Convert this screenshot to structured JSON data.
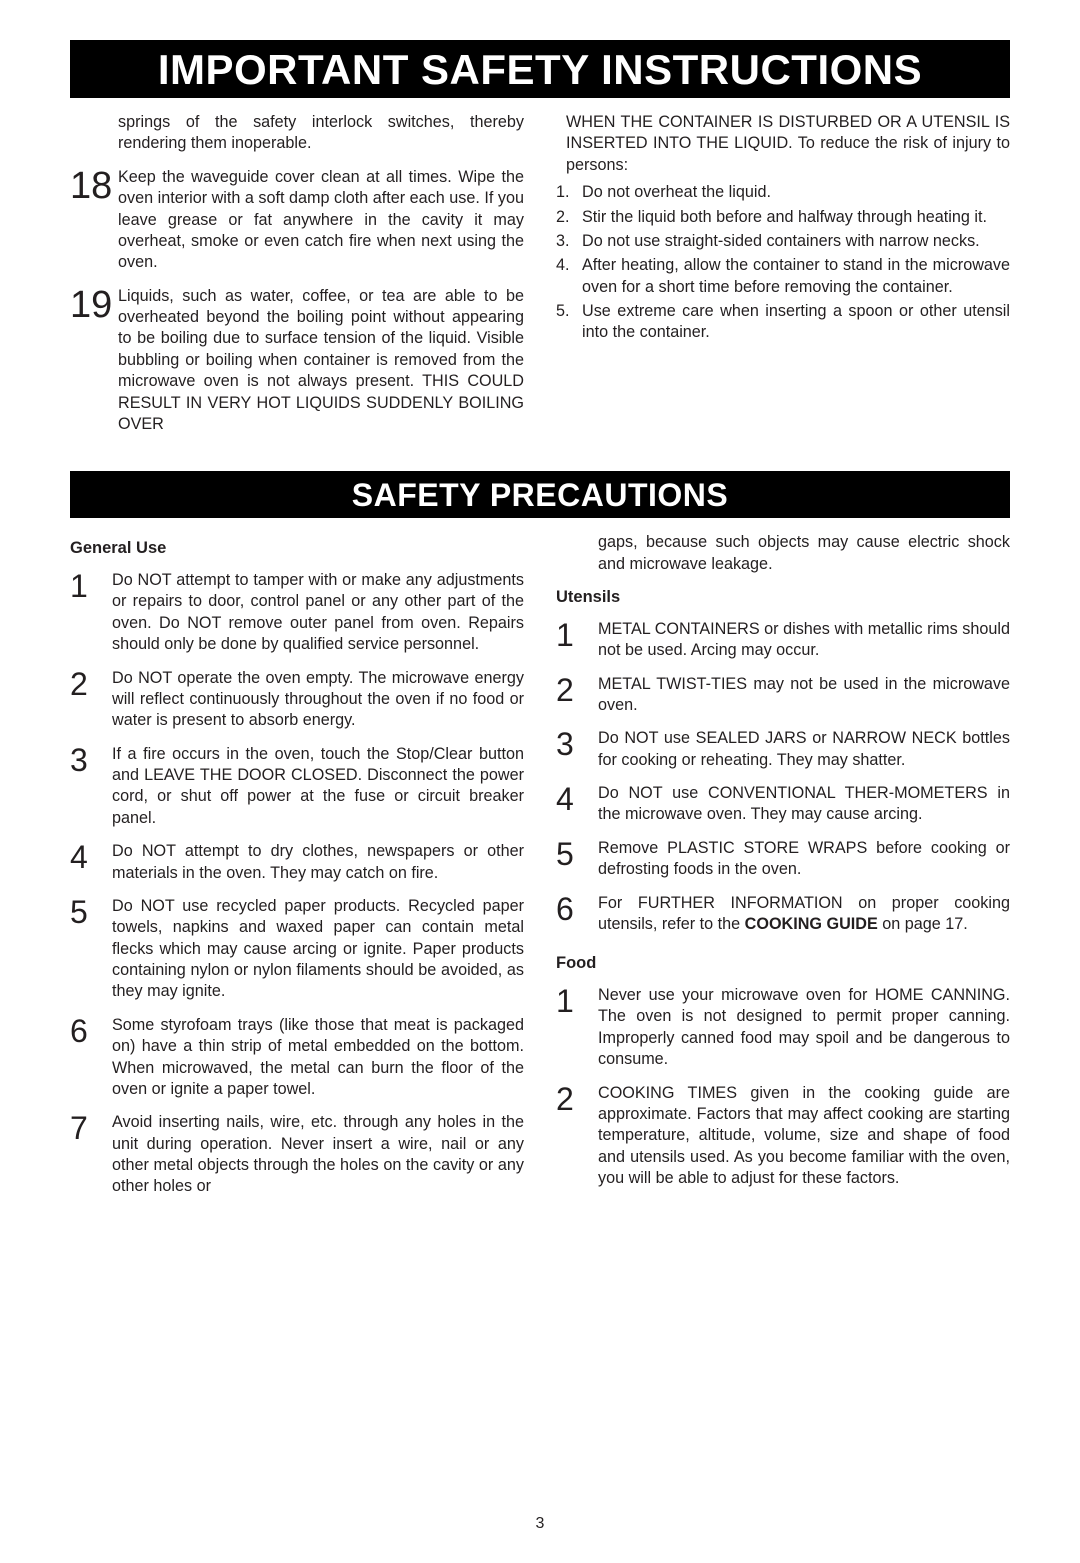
{
  "banners": {
    "main": "IMPORTANT SAFETY INSTRUCTIONS",
    "sub": "SAFETY PRECAUTIONS"
  },
  "top": {
    "left": {
      "cont17": "springs of the safety interlock switches, thereby rendering them inoperable.",
      "n18": "18",
      "t18": "Keep the waveguide cover clean at all times. Wipe the oven interior with a soft damp cloth after each use. If you leave grease or fat anywhere in the cavity it may overheat, smoke or even catch fire when next using the  oven.",
      "n19": "19",
      "t19": "Liquids, such as water, coffee, or tea are able to be overheated beyond the boiling point without appearing to be boiling due to surface tension of the liquid. Visible bubbling or boiling when container is removed from the microwave oven is not always present. THIS COULD RESULT IN VERY HOT LIQUIDS SUDDENLY BOILING OVER"
    },
    "right": {
      "cont19": "WHEN THE  CONTAINER  IS  DISTURBED OR  A UTENSIL  IS INSERTED  INTO  THE LIQUID. To   reduce  the  risk  of  injury  to persons:",
      "list": [
        {
          "n": "1.",
          "t": "Do not overheat the liquid."
        },
        {
          "n": "2.",
          "t": "Stir the liquid both before and halfway through heating it."
        },
        {
          "n": "3.",
          "t": "Do not use straight-sided containers with narrow necks."
        },
        {
          "n": "4.",
          "t": "After heating, allow the container to stand in the microwave oven for a short time before removing the container."
        },
        {
          "n": "5.",
          "t": "Use extreme care when inserting a spoon or other utensil into the container."
        }
      ]
    }
  },
  "precautions": {
    "left": {
      "head1": "General Use",
      "items": [
        {
          "n": "1",
          "t": "Do NOT attempt to tamper with or make any adjustments or repairs to door, control panel or any other part of the oven. Do NOT remove outer panel from oven. Repairs should only be done by qualified service personnel."
        },
        {
          "n": "2",
          "t": " Do NOT operate the oven empty. The microwave energy will reflect continuously throughout the oven if no food or water is present to absorb energy."
        },
        {
          "n": "3",
          "t": "If a fire occurs in the oven, touch the Stop/Clear button and LEAVE THE DOOR CLOSED. Disconnect the power cord, or shut off power at the fuse or circuit breaker panel."
        },
        {
          "n": "4",
          "t": "Do NOT attempt to dry clothes, newspapers or other materials in the oven. They may catch on fire."
        },
        {
          "n": "5",
          "t": "Do NOT use recycled paper products. Recycled paper towels, napkins and waxed paper can contain metal flecks which may cause arcing or ignite. Paper products containing nylon or nylon filaments should be avoided, as they may ignite."
        },
        {
          "n": "6",
          "t": "Some styrofoam trays (like those that meat is packaged on) have a thin strip of metal embedded on the bottom. When microwaved, the metal can burn the floor of the oven or ignite a paper towel."
        },
        {
          "n": "7",
          "t": "Avoid inserting nails, wire, etc. through any holes in the unit during operation. Never insert a wire, nail or any other metal objects through the holes on the cavity or any other holes or"
        }
      ]
    },
    "right": {
      "cont7": "gaps, because such objects may cause electric shock and microwave leakage.",
      "head2": "Utensils",
      "utensils": [
        {
          "n": "1",
          "t": "METAL CONTAINERS or dishes with metallic rims should not be used. Arcing may occur."
        },
        {
          "n": "2",
          "t": "METAL TWIST-TIES may not be used in the microwave oven."
        },
        {
          "n": "3",
          "t": "Do NOT use SEALED JARS or NARROW NECK bottles for cooking or reheating. They may shatter."
        },
        {
          "n": "4",
          "t": "Do NOT use CONVENTIONAL THER-MOMETERS in the microwave oven. They may cause arcing."
        },
        {
          "n": "5",
          "t": "Remove PLASTIC STORE WRAPS before cooking or defrosting foods in the oven."
        }
      ],
      "utensil6_n": "6",
      "utensil6_pre": "For FURTHER INFORMATION on proper cooking utensils, refer to the ",
      "utensil6_bold": "COOKING GUIDE",
      "utensil6_post": " on page 17.",
      "head3": "Food",
      "food": [
        {
          "n": "1",
          "t": "Never use your microwave oven for HOME CANNING. The oven is not designed to permit proper canning. Improperly canned food may spoil and be dangerous to consume."
        },
        {
          "n": "2",
          "t": "COOKING TIMES given in the cooking guide are approximate. Factors that may affect cooking are starting temperature, altitude, volume, size and shape of food and utensils used. As you become familiar with the oven, you will be able to adjust for these factors."
        }
      ]
    }
  },
  "pageNumber": "3"
}
